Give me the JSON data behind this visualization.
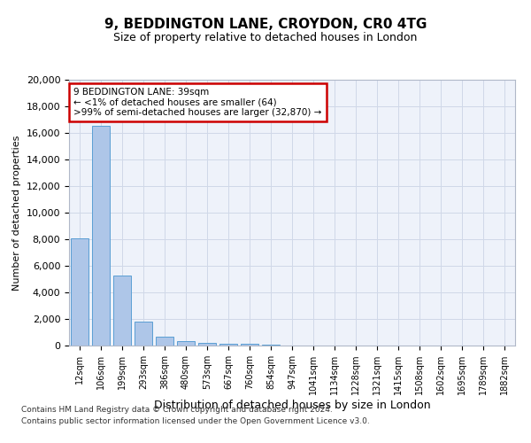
{
  "title_line1": "9, BEDDINGTON LANE, CROYDON, CR0 4TG",
  "title_line2": "Size of property relative to detached houses in London",
  "xlabel": "Distribution of detached houses by size in London",
  "ylabel": "Number of detached properties",
  "bar_values": [
    8100,
    16500,
    5300,
    1800,
    650,
    350,
    200,
    150,
    150,
    50,
    20,
    10,
    5,
    3,
    2,
    1,
    1,
    1,
    0,
    0,
    0
  ],
  "bar_labels": [
    "12sqm",
    "106sqm",
    "199sqm",
    "293sqm",
    "386sqm",
    "480sqm",
    "573sqm",
    "667sqm",
    "760sqm",
    "854sqm",
    "947sqm",
    "1041sqm",
    "1134sqm",
    "1228sqm",
    "1321sqm",
    "1415sqm",
    "1508sqm",
    "1602sqm",
    "1695sqm",
    "1789sqm",
    "1882sqm"
  ],
  "bar_color": "#aec6e8",
  "bar_edge_color": "#5a9fd4",
  "annotation_text": "9 BEDDINGTON LANE: 39sqm\n← <1% of detached houses are smaller (64)\n>99% of semi-detached houses are larger (32,870) →",
  "annotation_box_facecolor": "#ffffff",
  "annotation_border_color": "#cc0000",
  "ylim": [
    0,
    20000
  ],
  "yticks": [
    0,
    2000,
    4000,
    6000,
    8000,
    10000,
    12000,
    14000,
    16000,
    18000,
    20000
  ],
  "grid_color": "#d0d8e8",
  "background_color": "#eef2fa",
  "footer_line1": "Contains HM Land Registry data © Crown copyright and database right 2024.",
  "footer_line2": "Contains public sector information licensed under the Open Government Licence v3.0.",
  "figsize": [
    6.0,
    5.0
  ],
  "dpi": 100
}
